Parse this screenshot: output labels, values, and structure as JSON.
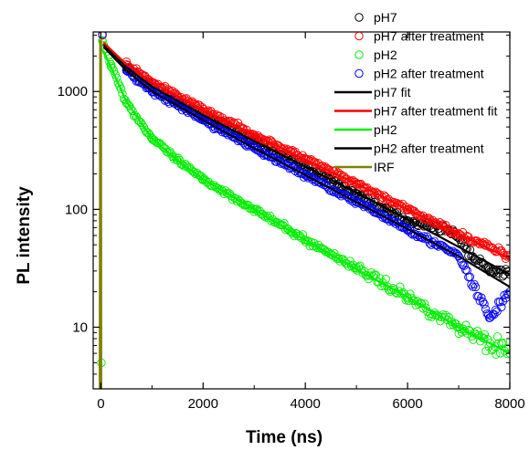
{
  "chart_data": {
    "type": "scatter",
    "title": "",
    "xlabel": "Time (ns)",
    "ylabel": "PL intensity",
    "xlim": [
      -150,
      8000
    ],
    "ylim": [
      3,
      3200
    ],
    "yscale": "log",
    "grid": false,
    "legend_position": "top-right",
    "x_ticks": [
      0,
      2000,
      4000,
      6000,
      8000
    ],
    "x_tick_labels": [
      "0",
      "2000",
      "4000",
      "6000",
      "8000"
    ],
    "y_ticks": [
      10,
      100,
      1000
    ],
    "y_tick_labels": [
      "10",
      "100",
      "1000"
    ],
    "scatter_series": [
      {
        "name": "pH7",
        "color": "#000000",
        "points": [
          [
            30,
            3000
          ],
          [
            500,
            1600
          ],
          [
            1000,
            1100
          ],
          [
            1500,
            840
          ],
          [
            2000,
            640
          ],
          [
            3000,
            380
          ],
          [
            4000,
            230
          ],
          [
            5000,
            135
          ],
          [
            6000,
            80
          ],
          [
            6900,
            65
          ],
          [
            7300,
            38
          ],
          [
            7600,
            31
          ],
          [
            8000,
            28
          ]
        ]
      },
      {
        "name": "pH7 after treatment",
        "color": "#ff0000",
        "points": [
          [
            30,
            3000
          ],
          [
            500,
            1700
          ],
          [
            1000,
            1200
          ],
          [
            1500,
            920
          ],
          [
            2000,
            710
          ],
          [
            3000,
            430
          ],
          [
            4000,
            270
          ],
          [
            5000,
            165
          ],
          [
            6000,
            100
          ],
          [
            7000,
            62
          ],
          [
            7500,
            50
          ],
          [
            8000,
            40
          ]
        ]
      },
      {
        "name": "pH2",
        "color": "#00ee00",
        "points": [
          [
            10,
            5
          ],
          [
            30,
            2700
          ],
          [
            200,
            1700
          ],
          [
            500,
            800
          ],
          [
            1000,
            400
          ],
          [
            1500,
            260
          ],
          [
            2000,
            180
          ],
          [
            3000,
            100
          ],
          [
            4000,
            55
          ],
          [
            5000,
            32
          ],
          [
            6000,
            18
          ],
          [
            7000,
            10
          ],
          [
            7500,
            8
          ],
          [
            8000,
            6
          ]
        ]
      },
      {
        "name": "pH2 after treatment",
        "color": "#0000ff",
        "points": [
          [
            30,
            3050
          ],
          [
            500,
            1500
          ],
          [
            1000,
            1000
          ],
          [
            1500,
            760
          ],
          [
            2000,
            570
          ],
          [
            3000,
            330
          ],
          [
            4000,
            195
          ],
          [
            5000,
            115
          ],
          [
            6000,
            68
          ],
          [
            7000,
            40
          ],
          [
            7600,
            12
          ],
          [
            8000,
            20
          ]
        ]
      }
    ],
    "line_series": [
      {
        "name": "pH7 fit",
        "color": "#000000",
        "points": [
          [
            50,
            2500
          ],
          [
            500,
            1600
          ],
          [
            1000,
            1100
          ],
          [
            2000,
            630
          ],
          [
            3000,
            380
          ],
          [
            4000,
            230
          ],
          [
            5000,
            138
          ],
          [
            6000,
            82
          ],
          [
            7000,
            48
          ],
          [
            8000,
            28
          ]
        ]
      },
      {
        "name": "pH7 after treatment fit",
        "color": "#ff0000",
        "points": [
          [
            50,
            2600
          ],
          [
            500,
            1700
          ],
          [
            1000,
            1200
          ],
          [
            2000,
            700
          ],
          [
            3000,
            430
          ],
          [
            4000,
            265
          ],
          [
            5000,
            165
          ],
          [
            6000,
            100
          ],
          [
            7000,
            62
          ],
          [
            8000,
            38
          ]
        ]
      },
      {
        "name": "pH2",
        "color": "#00ee00",
        "points": [
          [
            50,
            2200
          ],
          [
            200,
            1600
          ],
          [
            500,
            820
          ],
          [
            1000,
            400
          ],
          [
            1500,
            260
          ],
          [
            2000,
            180
          ],
          [
            3000,
            100
          ],
          [
            4000,
            55
          ],
          [
            5000,
            31
          ],
          [
            6000,
            18
          ],
          [
            7000,
            10
          ],
          [
            8000,
            6
          ]
        ]
      },
      {
        "name": "pH2 after treatment",
        "color": "#000000",
        "points": [
          [
            50,
            2400
          ],
          [
            500,
            1500
          ],
          [
            1000,
            1000
          ],
          [
            2000,
            570
          ],
          [
            3000,
            330
          ],
          [
            4000,
            195
          ],
          [
            5000,
            115
          ],
          [
            6000,
            68
          ],
          [
            7000,
            40
          ],
          [
            8000,
            22
          ]
        ]
      },
      {
        "name": "IRF",
        "color": "#808000",
        "points": [
          [
            -40,
            3
          ],
          [
            -20,
            3
          ],
          [
            -10,
            2700
          ],
          [
            0,
            2700
          ],
          [
            5,
            3
          ],
          [
            20,
            3
          ]
        ]
      }
    ]
  }
}
